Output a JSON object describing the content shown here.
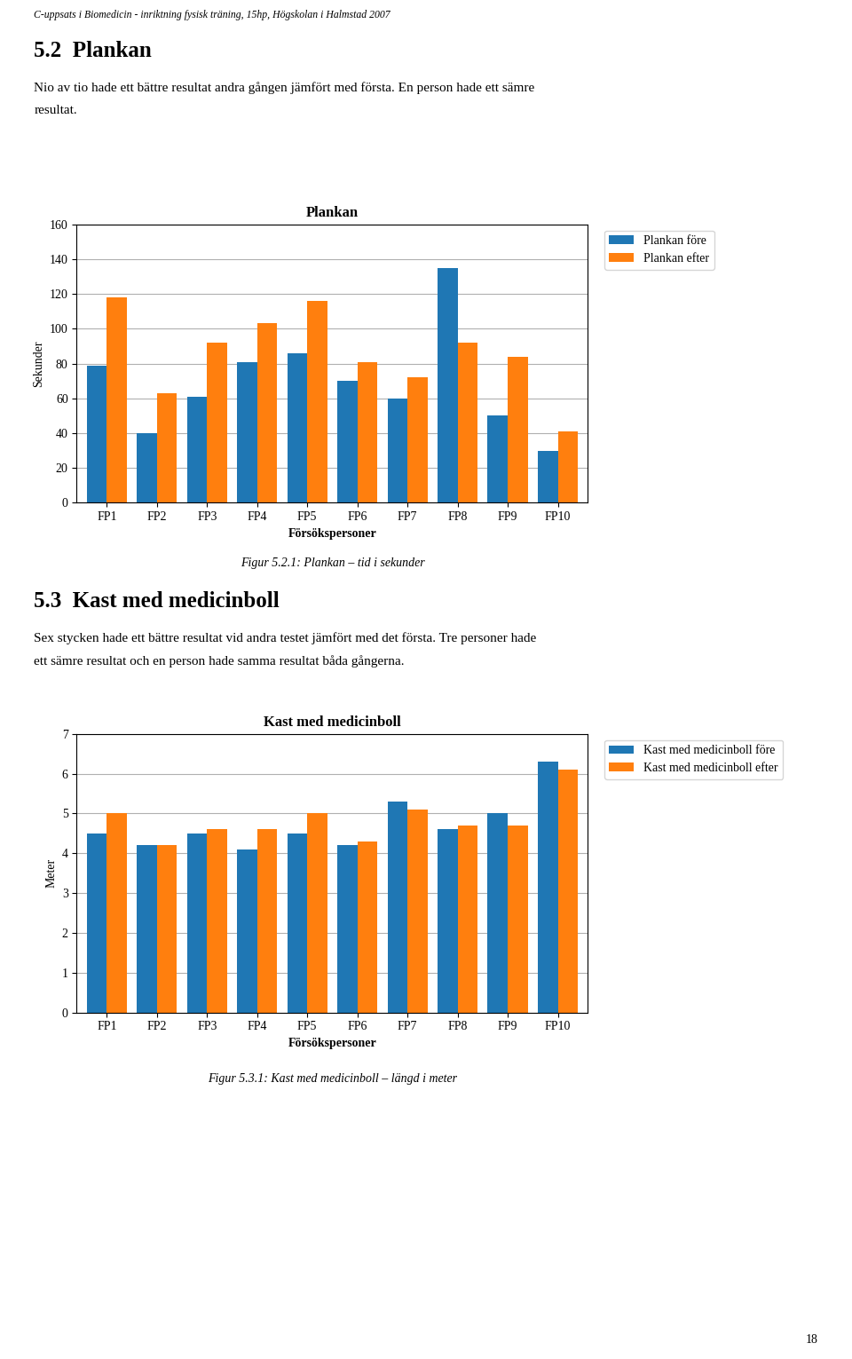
{
  "chart_data": [
    {
      "type": "bar",
      "title": "Plankan",
      "x_label": "Försökspersoner",
      "y_label": "Sekunder",
      "categories": [
        "FP1",
        "FP2",
        "FP3",
        "FP4",
        "FP5",
        "FP6",
        "FP7",
        "FP8",
        "FP9",
        "FP10"
      ],
      "series": [
        {
          "name": "Plankan före",
          "values": [
            79,
            40,
            61,
            81,
            86,
            70,
            60,
            135,
            50,
            30
          ]
        },
        {
          "name": "Plankan efter",
          "values": [
            118,
            63,
            92,
            103,
            116,
            81,
            72,
            92,
            84,
            41
          ]
        }
      ],
      "ylim": [
        0,
        160
      ],
      "yticks": [
        0,
        20,
        40,
        60,
        80,
        100,
        120,
        140,
        160
      ],
      "grid": true,
      "legend": "upper left",
      "annotations": [
        "C-uppsats i Biomedicin - inriktning fysisk träning, 15hp, Högskolan i Halmstad 2007",
        "5.2  Plankan",
        "Nio av tio hade ett bättre resultat andra gången jämfört med första. En person hade ett sämre",
        "resultat.",
        "Figur 5.2.1: Plankan – tid i sekunder"
      ]
    },
    {
      "type": "bar",
      "title": "Kast med medicinboll",
      "x_label": "Försökspersoner",
      "y_label": "Meter",
      "categories": [
        "FP1",
        "FP2",
        "FP3",
        "FP4",
        "FP5",
        "FP6",
        "FP7",
        "FP8",
        "FP9",
        "FP10"
      ],
      "series": [
        {
          "name": "Kast med medicinboll före",
          "values": [
            4.5,
            4.2,
            4.5,
            4.1,
            4.5,
            4.2,
            5.3,
            4.6,
            5.0,
            6.3
          ]
        },
        {
          "name": "Kast med medicinboll efter",
          "values": [
            5.0,
            4.2,
            4.6,
            4.6,
            5.0,
            4.3,
            5.1,
            4.7,
            4.7,
            6.1
          ]
        }
      ],
      "ylim": [
        0,
        7
      ],
      "yticks": [
        0,
        1,
        2,
        3,
        4,
        5,
        6,
        7
      ],
      "grid": true,
      "legend": "upper left",
      "annotations": [
        "5.3  Kast med medicinboll",
        "Sex stycken hade ett bättre resultat vid andra testet jämfört med det första. Tre personer hade",
        "ett sämre resultat och en person hade samma resultat båda gångerna.",
        "Figur 5.3.1: Kast med medicinboll – längd i meter",
        "18"
      ]
    }
  ]
}
